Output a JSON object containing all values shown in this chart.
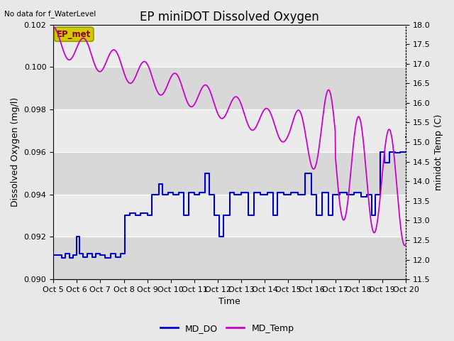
{
  "title": "EP miniDOT Dissolved Oxygen",
  "no_data_text": "No data for f_WaterLevel",
  "ep_met_label": "EP_met",
  "xlabel": "Time",
  "ylabel_left": "Dissolved Oxygen (mg/l)",
  "ylabel_right": "minidot Temp (C)",
  "ylim_left": [
    0.09,
    0.102
  ],
  "ylim_right": [
    11.5,
    18.0
  ],
  "yticks_left": [
    0.09,
    0.092,
    0.094,
    0.096,
    0.098,
    0.1,
    0.102
  ],
  "yticks_right": [
    11.5,
    12.0,
    12.5,
    13.0,
    13.5,
    14.0,
    14.5,
    15.0,
    15.5,
    16.0,
    16.5,
    17.0,
    17.5,
    18.0
  ],
  "xtick_labels": [
    "Oct 5",
    "Oct 6",
    "Oct 7",
    "Oct 8",
    "Oct 9",
    "Oct 10",
    "Oct 11",
    "Oct 12",
    "Oct 13",
    "Oct 14",
    "Oct 15",
    "Oct 16",
    "Oct 17",
    "Oct 18",
    "Oct 19",
    "Oct 20"
  ],
  "color_DO": "#0000cc",
  "color_Temp": "#cc00cc",
  "fig_facecolor": "#e8e8e8",
  "band_light": "#ebebeb",
  "band_dark": "#d8d8d8",
  "ep_met_box_color": "#cccc00",
  "ep_met_text_color": "#880000",
  "title_fontsize": 12,
  "label_fontsize": 9,
  "tick_fontsize": 8,
  "legend_fontsize": 9
}
